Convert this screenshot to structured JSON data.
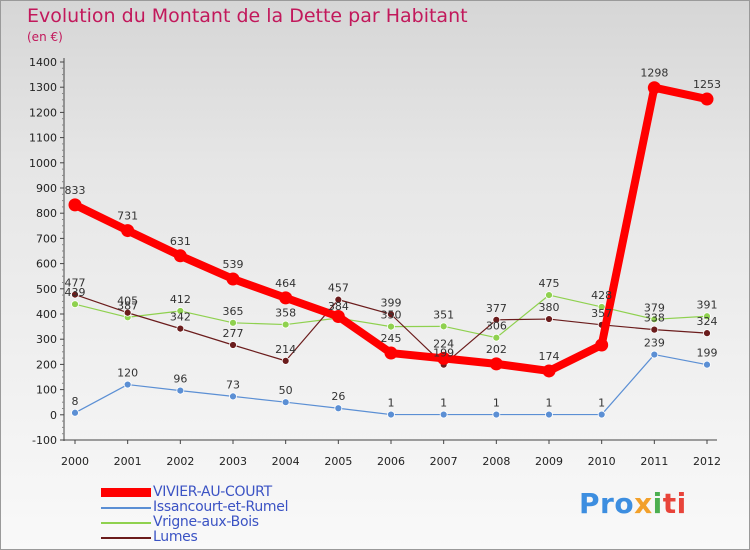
{
  "chart_data": {
    "type": "line",
    "title": "Evolution du Montant de la Dette par Habitant",
    "subtitle": "(en €)",
    "x": [
      "2000",
      "2001",
      "2002",
      "2003",
      "2004",
      "2005",
      "2006",
      "2007",
      "2008",
      "2009",
      "2010",
      "2011",
      "2012"
    ],
    "ylim": [
      -100,
      1400
    ],
    "yticks": [
      -100,
      0,
      100,
      200,
      300,
      400,
      500,
      600,
      700,
      800,
      900,
      1000,
      1100,
      1200,
      1300,
      1400
    ],
    "grid": false,
    "legend_position": "bottom-left",
    "series": [
      {
        "name": "VIVIER-AU-COURT",
        "color": "#ff0000",
        "values": [
          833,
          731,
          631,
          539,
          464,
          390,
          245,
          224,
          202,
          174,
          277,
          1298,
          1253
        ],
        "labels": [
          "833",
          "731",
          "631",
          "539",
          "464",
          "",
          "245",
          "224",
          "202",
          "174",
          "",
          "1298",
          "1253"
        ]
      },
      {
        "name": "Issancourt-et-Rumel",
        "color": "#5b8fd4",
        "values": [
          8,
          120,
          96,
          73,
          50,
          26,
          1,
          1,
          1,
          1,
          1,
          239,
          199
        ],
        "labels": [
          "8",
          "120",
          "96",
          "73",
          "50",
          "26",
          "1",
          "1",
          "1",
          "1",
          "1",
          "239",
          "199"
        ]
      },
      {
        "name": "Vrigne-aux-Bois",
        "color": "#8fd14f",
        "values": [
          439,
          387,
          412,
          365,
          358,
          384,
          350,
          351,
          306,
          475,
          428,
          379,
          391
        ],
        "labels": [
          "439",
          "387",
          "412",
          "365",
          "358",
          "384",
          "350",
          "351",
          "306",
          "475",
          "428",
          "379",
          "391"
        ]
      },
      {
        "name": "Lumes",
        "color": "#6b1c1c",
        "values": [
          477,
          405,
          342,
          277,
          214,
          457,
          399,
          199,
          377,
          380,
          357,
          338,
          324
        ],
        "labels": [
          "477",
          "405",
          "342",
          "277",
          "214",
          "457",
          "399",
          "199",
          "377",
          "380",
          "357",
          "338",
          "324"
        ]
      }
    ]
  },
  "logo": {
    "p1": "Pro",
    "p2": "x",
    "p3": "i",
    "p4": "ti"
  }
}
